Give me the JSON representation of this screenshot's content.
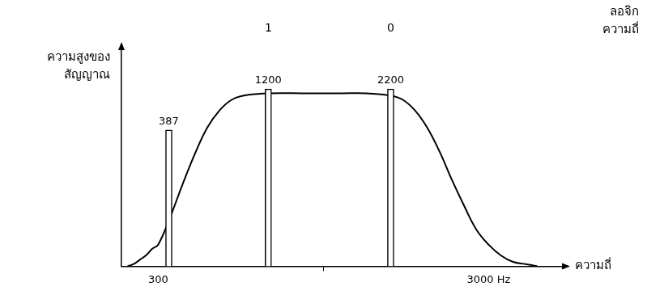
{
  "chart_data": {
    "type": "line",
    "x_label": "ความถี่",
    "y_label": "ความสูงของ สัญญาณ",
    "xlim": [
      0,
      3600
    ],
    "xticks": [
      300,
      {
        "value": 3000,
        "label": "3000 Hz"
      }
    ],
    "ylim": [
      0,
      10
    ],
    "grid": false,
    "tick_labels": "x",
    "series": [
      {
        "type": "line",
        "color": "#000000",
        "x": [
          50,
          100,
          150,
          200,
          250,
          300,
          400,
          500,
          600,
          700,
          800,
          900,
          1000,
          1200,
          1500,
          1800,
          2000,
          2200,
          2300,
          2400,
          2500,
          2600,
          2700,
          2800,
          2900,
          3000,
          3100,
          3200,
          3300,
          3400
        ],
        "values": [
          0,
          0.1,
          0.3,
          0.5,
          0.8,
          1.0,
          2.3,
          3.8,
          5.2,
          6.4,
          7.2,
          7.7,
          7.9,
          8.0,
          8.0,
          8.0,
          8.0,
          7.9,
          7.7,
          7.2,
          6.4,
          5.3,
          4.0,
          2.8,
          1.7,
          1.0,
          0.5,
          0.2,
          0.1,
          0
        ]
      },
      {
        "type": "bar",
        "color": "#ffffff",
        "x": [
          387,
          1200,
          2200
        ],
        "values": [
          6.3,
          8.2,
          8.2
        ],
        "labels": [
          "387",
          "1200",
          "2200"
        ]
      }
    ],
    "annotations": [
      {
        "text": "ลอจิก ความถี่"
      },
      {
        "text": "1",
        "x": 1200
      },
      {
        "text": "0",
        "x": 2200
      }
    ]
  }
}
